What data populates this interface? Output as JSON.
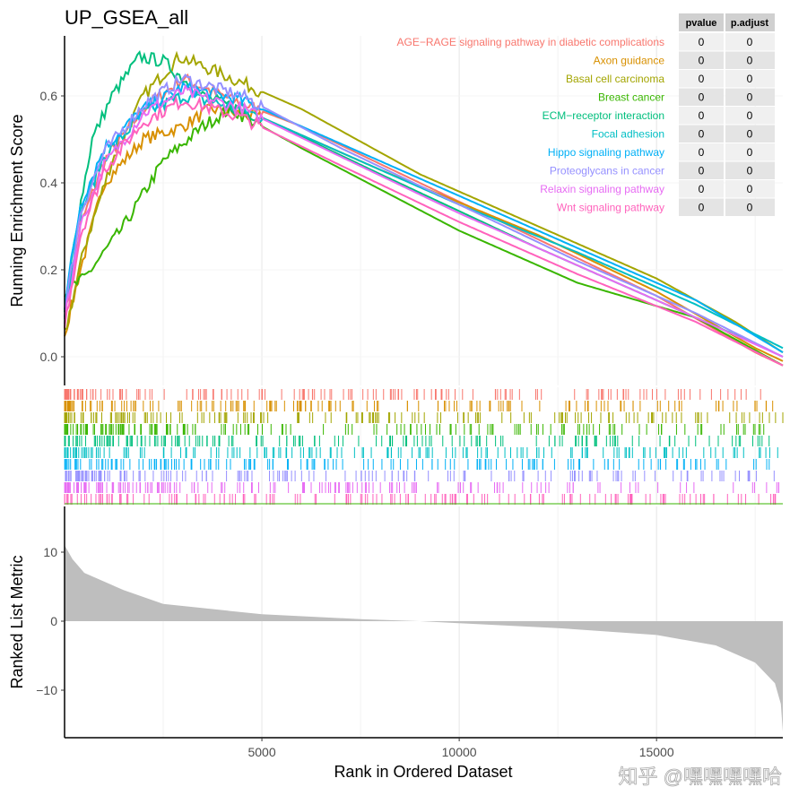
{
  "chart_data": {
    "type": "line",
    "title": "UP_GSEA_all",
    "xlabel": "Rank in Ordered Dataset",
    "ylabel_top": "Running Enrichment Score",
    "ylabel_bottom": "Ranked List Metric",
    "xlim": [
      0,
      18200
    ],
    "ylim_top": [
      -0.05,
      0.73
    ],
    "ylim_bottom": [
      -17,
      16.6
    ],
    "xticks": [
      5000,
      10000,
      15000
    ],
    "xtick_labels": [
      "5000",
      "10000",
      "15000"
    ],
    "yticks_top": [
      0,
      0.2,
      0.4,
      0.6
    ],
    "ytick_labels_top": [
      "0.0",
      "0.2",
      "0.4",
      "0.6"
    ],
    "yticks_bottom": [
      -10,
      0,
      10
    ],
    "ytick_labels_bottom": [
      "−10",
      "0",
      "10"
    ],
    "grid": "vertical",
    "legend_placement": "top-right",
    "table_headers": [
      "pvalue",
      "p.adjust"
    ],
    "series": [
      {
        "name": "AGE−RAGE signaling pathway in diabetic complications",
        "color": "#F8766D",
        "pvalue": "0",
        "p_adjust": "0",
        "points": [
          [
            0,
            0.08
          ],
          [
            400,
            0.3
          ],
          [
            1000,
            0.45
          ],
          [
            2000,
            0.57
          ],
          [
            3000,
            0.64
          ],
          [
            4000,
            0.6
          ],
          [
            6000,
            0.53
          ],
          [
            9000,
            0.4
          ],
          [
            12000,
            0.27
          ],
          [
            15000,
            0.14
          ],
          [
            17500,
            0.01
          ],
          [
            18200,
            -0.02
          ]
        ]
      },
      {
        "name": "Axon guidance",
        "color": "#D89000",
        "pvalue": "0",
        "p_adjust": "0",
        "points": [
          [
            0,
            0.05
          ],
          [
            400,
            0.2
          ],
          [
            1000,
            0.4
          ],
          [
            2000,
            0.5
          ],
          [
            3000,
            0.53
          ],
          [
            3700,
            0.57
          ],
          [
            5000,
            0.55
          ],
          [
            8000,
            0.43
          ],
          [
            12000,
            0.28
          ],
          [
            15000,
            0.15
          ],
          [
            17500,
            0.02
          ],
          [
            18200,
            -0.01
          ]
        ]
      },
      {
        "name": "Basal cell carcinoma",
        "color": "#A3A500",
        "pvalue": "0",
        "p_adjust": "0",
        "points": [
          [
            0,
            0.05
          ],
          [
            500,
            0.25
          ],
          [
            1200,
            0.45
          ],
          [
            2000,
            0.6
          ],
          [
            2900,
            0.69
          ],
          [
            4000,
            0.65
          ],
          [
            6000,
            0.57
          ],
          [
            9000,
            0.42
          ],
          [
            12000,
            0.3
          ],
          [
            15000,
            0.18
          ],
          [
            17000,
            0.08
          ],
          [
            18200,
            0.01
          ]
        ]
      },
      {
        "name": "Breast cancer",
        "color": "#39B600",
        "pvalue": "0",
        "p_adjust": "0",
        "points": [
          [
            0,
            0.15
          ],
          [
            500,
            0.18
          ],
          [
            1500,
            0.3
          ],
          [
            2500,
            0.45
          ],
          [
            3500,
            0.53
          ],
          [
            4200,
            0.57
          ],
          [
            6000,
            0.48
          ],
          [
            10000,
            0.29
          ],
          [
            13000,
            0.17
          ],
          [
            16000,
            0.09
          ],
          [
            18200,
            -0.02
          ]
        ]
      },
      {
        "name": "ECM−receptor interaction",
        "color": "#00BF7D",
        "pvalue": "0",
        "p_adjust": "0",
        "points": [
          [
            0,
            0.1
          ],
          [
            300,
            0.3
          ],
          [
            700,
            0.5
          ],
          [
            1200,
            0.6
          ],
          [
            1900,
            0.69
          ],
          [
            2500,
            0.68
          ],
          [
            3500,
            0.6
          ],
          [
            5000,
            0.55
          ],
          [
            8000,
            0.42
          ],
          [
            12000,
            0.25
          ],
          [
            15000,
            0.13
          ],
          [
            17500,
            0.03
          ],
          [
            18200,
            0
          ]
        ]
      },
      {
        "name": "Focal adhesion",
        "color": "#00BFC4",
        "pvalue": "0",
        "p_adjust": "0",
        "points": [
          [
            0,
            0.1
          ],
          [
            400,
            0.33
          ],
          [
            1000,
            0.46
          ],
          [
            2000,
            0.56
          ],
          [
            3000,
            0.6
          ],
          [
            4500,
            0.57
          ],
          [
            7000,
            0.47
          ],
          [
            10000,
            0.35
          ],
          [
            13000,
            0.24
          ],
          [
            16000,
            0.12
          ],
          [
            18200,
            0.02
          ]
        ]
      },
      {
        "name": "Hippo signaling pathway",
        "color": "#00B0F6",
        "pvalue": "0",
        "p_adjust": "0",
        "points": [
          [
            0,
            0.12
          ],
          [
            400,
            0.35
          ],
          [
            1000,
            0.48
          ],
          [
            2000,
            0.57
          ],
          [
            3000,
            0.62
          ],
          [
            4500,
            0.59
          ],
          [
            7000,
            0.49
          ],
          [
            10000,
            0.37
          ],
          [
            13000,
            0.25
          ],
          [
            16000,
            0.13
          ],
          [
            18200,
            0.01
          ]
        ]
      },
      {
        "name": "Proteoglycans in cancer",
        "color": "#9590FF",
        "pvalue": "0",
        "p_adjust": "0",
        "points": [
          [
            0,
            0.1
          ],
          [
            400,
            0.33
          ],
          [
            1000,
            0.47
          ],
          [
            2000,
            0.58
          ],
          [
            3000,
            0.64
          ],
          [
            4500,
            0.6
          ],
          [
            7000,
            0.48
          ],
          [
            10000,
            0.35
          ],
          [
            13000,
            0.22
          ],
          [
            16000,
            0.1
          ],
          [
            18200,
            0.0
          ]
        ]
      },
      {
        "name": "Relaxin signaling pathway",
        "color": "#E76BF3",
        "pvalue": "0",
        "p_adjust": "0",
        "points": [
          [
            0,
            0.08
          ],
          [
            400,
            0.3
          ],
          [
            1000,
            0.44
          ],
          [
            2000,
            0.56
          ],
          [
            3000,
            0.61
          ],
          [
            4500,
            0.57
          ],
          [
            7000,
            0.46
          ],
          [
            10000,
            0.33
          ],
          [
            13000,
            0.21
          ],
          [
            16000,
            0.09
          ],
          [
            18200,
            0.0
          ]
        ]
      },
      {
        "name": "Wnt signaling pathway",
        "color": "#FF62BC",
        "pvalue": "0",
        "p_adjust": "0",
        "points": [
          [
            0,
            0.07
          ],
          [
            400,
            0.28
          ],
          [
            1000,
            0.43
          ],
          [
            2000,
            0.54
          ],
          [
            3000,
            0.59
          ],
          [
            4500,
            0.55
          ],
          [
            7000,
            0.44
          ],
          [
            10000,
            0.31
          ],
          [
            13000,
            0.19
          ],
          [
            16000,
            0.08
          ],
          [
            18200,
            -0.02
          ]
        ]
      }
    ],
    "ranked_metric": [
      [
        0,
        11
      ],
      [
        200,
        9
      ],
      [
        500,
        7
      ],
      [
        1500,
        4.5
      ],
      [
        2500,
        2.5
      ],
      [
        5000,
        1
      ],
      [
        7500,
        0.3
      ],
      [
        9000,
        0
      ],
      [
        10000,
        -0.3
      ],
      [
        12500,
        -1
      ],
      [
        15000,
        -2
      ],
      [
        16500,
        -3.5
      ],
      [
        17500,
        -6
      ],
      [
        18000,
        -9
      ],
      [
        18150,
        -12
      ],
      [
        18200,
        -16
      ]
    ]
  },
  "watermark": "知乎 @嘿嘿嘿嘿哈"
}
